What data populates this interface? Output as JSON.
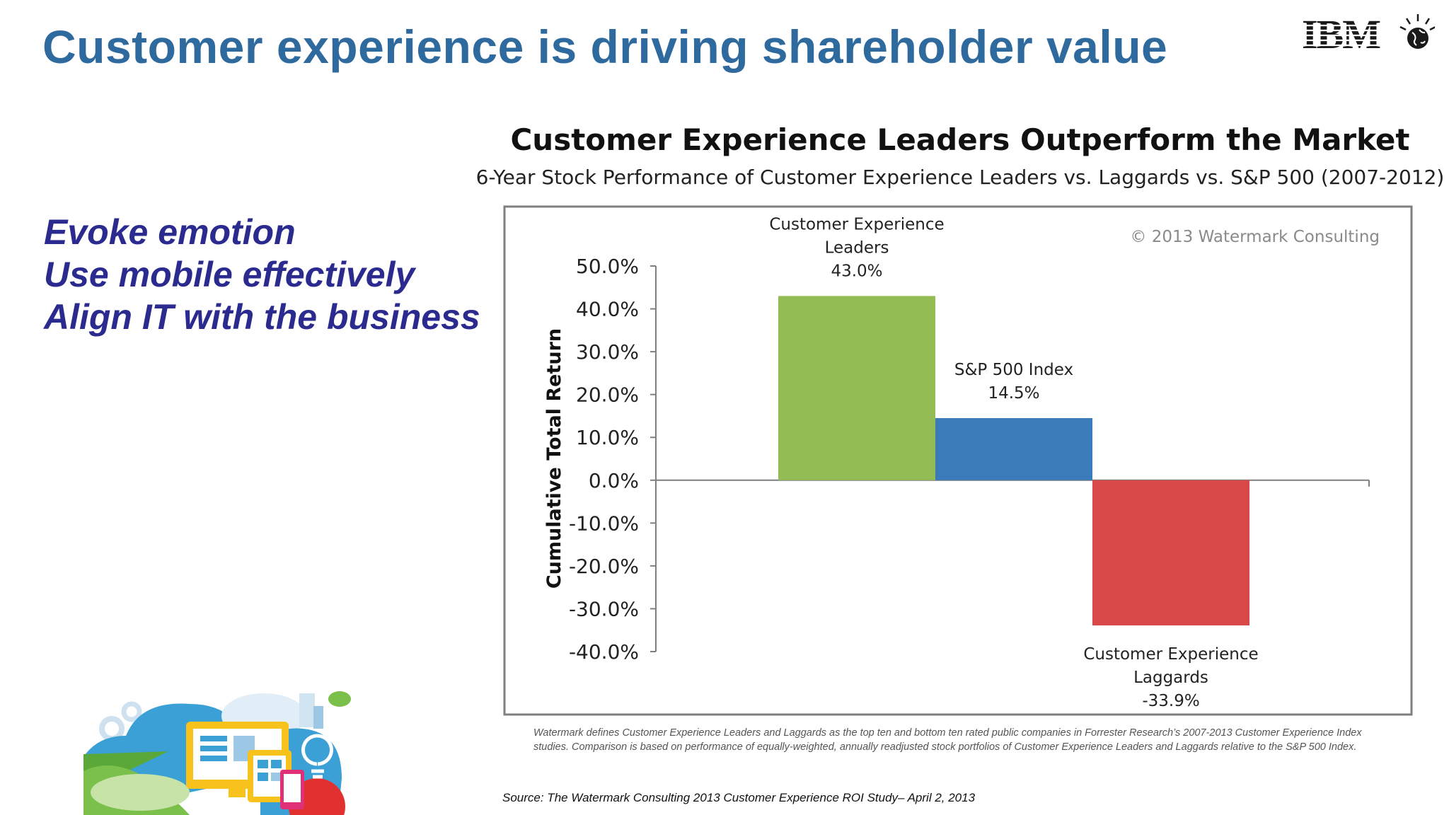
{
  "slide": {
    "title": "Customer experience is driving shareholder value",
    "logo_text": "IBM",
    "bullets": [
      "Evoke emotion",
      "Use mobile effectively",
      "Align IT with the business"
    ],
    "footnote": "Watermark defines Customer Experience Leaders and Laggards as the top ten and bottom ten rated public companies in Forrester Research’s 2007-2013  Customer Experience Index studies. Comparison is based on performance of equally-weighted, annually readjusted stock portfolios of Customer Experience Leaders and Laggards relative to the S&P 500 Index.",
    "source": "Source: The Watermark Consulting 2013 Customer Experience ROI Study– April 2, 2013"
  },
  "chart_data": {
    "type": "bar",
    "title": "Customer Experience Leaders Outperform the Market",
    "subtitle": "6-Year Stock Performance of Customer Experience Leaders vs. Laggards vs. S&P 500 (2007-2012)",
    "ylabel": "Cumulative Total Return",
    "watermark": "© 2013 Watermark Consulting",
    "ylim": [
      -40,
      50
    ],
    "yticks": [
      50,
      40,
      30,
      20,
      10,
      0,
      -10,
      -20,
      -30,
      -40
    ],
    "ytick_labels": [
      "50.0%",
      "40.0%",
      "30.0%",
      "20.0%",
      "10.0%",
      "0.0%",
      "-10.0%",
      "-20.0%",
      "-30.0%",
      "-40.0%"
    ],
    "grid": false,
    "categories": [
      "Customer Experience Leaders",
      "S&P 500 Index",
      "Customer Experience Laggards"
    ],
    "values": [
      43.0,
      14.5,
      -33.9
    ],
    "label_lines": [
      [
        "Customer Experience",
        "Leaders",
        "43.0%"
      ],
      [
        "S&P 500 Index",
        "14.5%"
      ],
      [
        "Customer Experience",
        "Laggards",
        "-33.9%"
      ]
    ],
    "colors": [
      "#93bd54",
      "#3a7cba",
      "#d94848"
    ]
  }
}
